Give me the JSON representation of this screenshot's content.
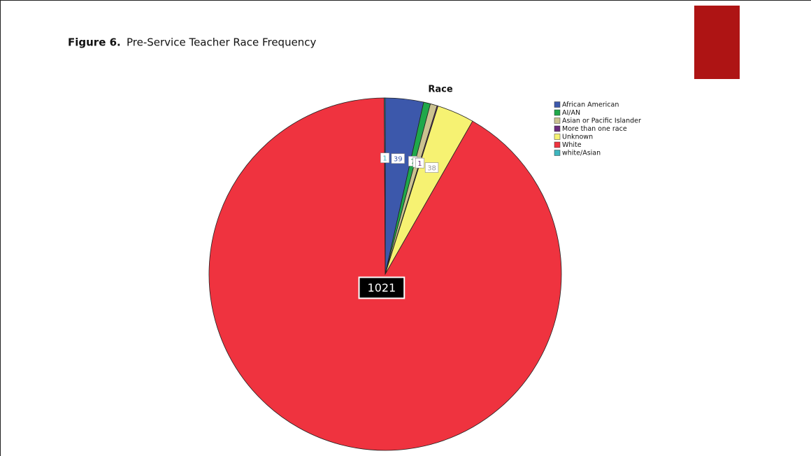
{
  "chart_data": {
    "type": "pie",
    "figure_label": "Figure 6.",
    "title": "Pre-Service Teacher Race Frequency",
    "chart_title": "Race",
    "categories": [
      "African American",
      "AI/AN",
      "Asian or Pacific Islander",
      "More than one race",
      "Unknown",
      "White",
      "white/Asian"
    ],
    "values": [
      39,
      7,
      7,
      1,
      38,
      1021,
      1
    ],
    "colors": [
      "#3c58ab",
      "#1fa84a",
      "#cbc290",
      "#6a2b7d",
      "#f6f272",
      "#ef333f",
      "#3db6bf"
    ],
    "legend": "upper right"
  }
}
